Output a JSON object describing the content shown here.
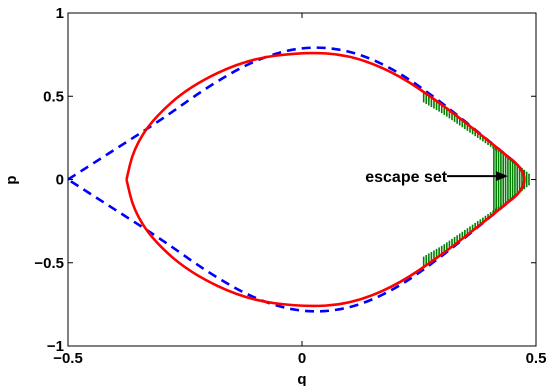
{
  "chart_data": {
    "type": "line",
    "title": "",
    "xlabel": "q",
    "ylabel": "p",
    "xlim": [
      -0.5,
      0.5
    ],
    "ylim": [
      -1,
      1
    ],
    "xticks": [
      -0.5,
      0,
      0.5
    ],
    "xtick_labels": [
      "−0.5",
      "0",
      "0.5"
    ],
    "yticks": [
      -1,
      -0.5,
      0,
      0.5,
      1
    ],
    "ytick_labels": [
      "−1",
      "−0.5",
      "0",
      "0.5",
      "1"
    ],
    "grid": false,
    "series": [
      {
        "style": "dashed",
        "color": "#0000ff",
        "description_points_upper": [
          [
            -0.5,
            0.0
          ],
          [
            -0.4,
            0.18
          ],
          [
            -0.3,
            0.36
          ],
          [
            -0.2,
            0.56
          ],
          [
            -0.1,
            0.72
          ],
          [
            0.0,
            0.8
          ],
          [
            0.1,
            0.78
          ],
          [
            0.2,
            0.66
          ],
          [
            0.3,
            0.46
          ],
          [
            0.4,
            0.23
          ],
          [
            0.5,
            0.0
          ]
        ]
      },
      {
        "style": "solid",
        "color": "#ff0000",
        "description_points_upper": [
          [
            -0.375,
            0.0
          ],
          [
            -0.36,
            0.18
          ],
          [
            -0.32,
            0.36
          ],
          [
            -0.24,
            0.56
          ],
          [
            -0.12,
            0.72
          ],
          [
            0.0,
            0.765
          ],
          [
            0.1,
            0.75
          ],
          [
            0.2,
            0.64
          ],
          [
            0.3,
            0.45
          ],
          [
            0.4,
            0.23
          ],
          [
            0.5,
            0.0
          ]
        ]
      }
    ],
    "shaded_region": {
      "color": "#008000",
      "q_range": [
        0.26,
        0.49
      ]
    },
    "annotations": [
      {
        "text": "escape set",
        "arrow_from": [
          0.31,
          0.02
        ],
        "arrow_to": [
          0.44,
          0.02
        ]
      }
    ]
  }
}
